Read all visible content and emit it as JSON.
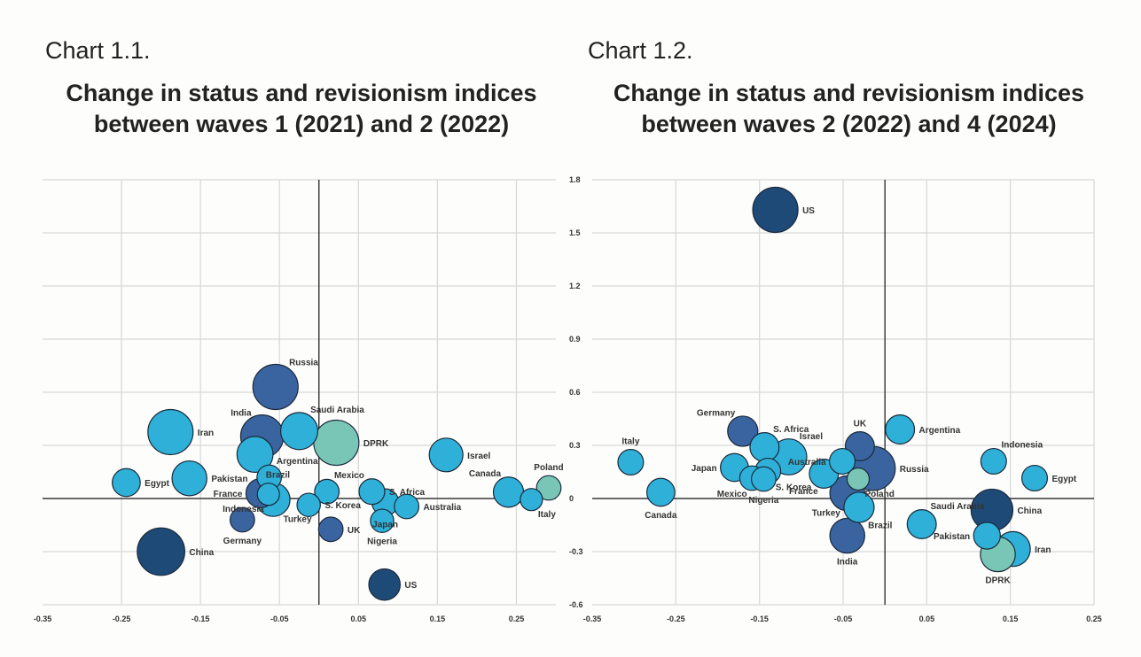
{
  "palette": {
    "light": "#2eb0d8",
    "mid": "#3a64a0",
    "dark": "#1e4a78",
    "teal": "#79c6b6"
  },
  "chart_data": [
    {
      "type": "scatter",
      "subtype": "bubble",
      "number": "Chart 1.1.",
      "title_line1": "Change in status and revisionism indices",
      "title_line2": "between waves 1 (2021) and 2 (2022)",
      "xlabel": "",
      "ylabel": "",
      "xlim": [
        -0.35,
        0.3
      ],
      "x_ticks": [
        "-0.35",
        "-0.25",
        "-0.15",
        "-0.05",
        "0.05",
        "0.15",
        "0.25"
      ],
      "x_tick_values": [
        -0.35,
        -0.25,
        -0.15,
        -0.05,
        0.05,
        0.15,
        0.25
      ],
      "y_ticks_shown": false,
      "y_note": "no y tick labels shown; y values estimated in gridline units (1 gridline = 0.1)",
      "ylim": [
        -0.2,
        0.6
      ],
      "y_gridlines": [
        -0.2,
        -0.1,
        0.1,
        0.2,
        0.3,
        0.4,
        0.5,
        0.6
      ],
      "grid": true,
      "points": [
        {
          "name": "Russia",
          "x": -0.055,
          "y": 0.21,
          "size": 3,
          "color": "mid",
          "label_pos": "top-right"
        },
        {
          "name": "Iran",
          "x": -0.188,
          "y": 0.125,
          "size": 3,
          "color": "light",
          "label_pos": "right"
        },
        {
          "name": "Saudi Arabia",
          "x": -0.025,
          "y": 0.127,
          "size": 2.3,
          "color": "light",
          "label_pos": "top-right"
        },
        {
          "name": "DPRK",
          "x": 0.022,
          "y": 0.105,
          "size": 3,
          "color": "teal",
          "label_pos": "right"
        },
        {
          "name": "Brazil",
          "x": -0.081,
          "y": 0.083,
          "size": 2.2,
          "color": "light",
          "label_pos": "bottom-right"
        },
        {
          "name": "India",
          "x": -0.072,
          "y": 0.117,
          "size": 2.8,
          "color": "mid",
          "label_pos": "top-left"
        },
        {
          "name": "Israel",
          "x": 0.161,
          "y": 0.082,
          "size": 2.0,
          "color": "light",
          "label_pos": "right"
        },
        {
          "name": "Pakistan",
          "x": -0.164,
          "y": 0.038,
          "size": 2.1,
          "color": "light",
          "label_pos": "right"
        },
        {
          "name": "Egypt",
          "x": -0.244,
          "y": 0.03,
          "size": 1.5,
          "color": "light",
          "label_pos": "right"
        },
        {
          "name": "Argentina",
          "x": -0.063,
          "y": 0.04,
          "size": 1.2,
          "color": "light",
          "label_pos": "top-right"
        },
        {
          "name": "Turkey",
          "x": -0.058,
          "y": -0.002,
          "size": 2.0,
          "color": "light",
          "label_pos": "bottom-right"
        },
        {
          "name": "Indonesia",
          "x": -0.064,
          "y": 0.008,
          "size": 1.0,
          "color": "light",
          "label_pos": "bottom-left"
        },
        {
          "name": "France",
          "x": -0.074,
          "y": 0.01,
          "size": 1.6,
          "color": "mid",
          "label_pos": "left"
        },
        {
          "name": "Mexico",
          "x": 0.01,
          "y": 0.013,
          "size": 1.2,
          "color": "light",
          "label_pos": "top-right"
        },
        {
          "name": "S. Africa",
          "x": 0.067,
          "y": 0.013,
          "size": 1.3,
          "color": "light",
          "label_pos": "right"
        },
        {
          "name": "Japan",
          "x": 0.084,
          "y": -0.007,
          "size": 1.4,
          "color": "light",
          "label_pos": "bottom"
        },
        {
          "name": "S. Korea",
          "x": -0.013,
          "y": -0.012,
          "size": 1.1,
          "color": "light",
          "label_pos": "right"
        },
        {
          "name": "Australia",
          "x": 0.111,
          "y": -0.015,
          "size": 1.2,
          "color": "light",
          "label_pos": "right"
        },
        {
          "name": "Canada",
          "x": 0.24,
          "y": 0.012,
          "size": 1.7,
          "color": "light",
          "label_pos": "top-left"
        },
        {
          "name": "Italy",
          "x": 0.269,
          "y": -0.002,
          "size": 1.0,
          "color": "light",
          "label_pos": "bottom-right"
        },
        {
          "name": "Poland",
          "x": 0.291,
          "y": 0.02,
          "size": 1.2,
          "color": "teal",
          "label_pos": "top"
        },
        {
          "name": "Germany",
          "x": -0.097,
          "y": -0.04,
          "size": 1.2,
          "color": "mid",
          "label_pos": "bottom"
        },
        {
          "name": "Nigeria",
          "x": 0.08,
          "y": -0.042,
          "size": 1.1,
          "color": "light",
          "label_pos": "bottom"
        },
        {
          "name": "UK",
          "x": 0.015,
          "y": -0.058,
          "size": 1.2,
          "color": "mid",
          "label_pos": "right"
        },
        {
          "name": "China",
          "x": -0.2,
          "y": -0.1,
          "size": 3.2,
          "color": "dark",
          "label_pos": "right"
        },
        {
          "name": "US",
          "x": 0.083,
          "y": -0.162,
          "size": 1.8,
          "color": "dark",
          "label_pos": "right"
        }
      ]
    },
    {
      "type": "scatter",
      "subtype": "bubble",
      "number": "Chart 1.2.",
      "title_line1": "Change in status and revisionism indices",
      "title_line2": "between waves 2 (2022) and 4 (2024)",
      "xlabel": "",
      "ylabel": "",
      "xlim": [
        -0.35,
        0.25
      ],
      "ylim": [
        -0.6,
        1.8
      ],
      "x_ticks": [
        "-0.35",
        "-0.25",
        "-0.15",
        "-0.05",
        "0.05",
        "0.15",
        "0.25"
      ],
      "x_tick_values": [
        -0.35,
        -0.25,
        -0.15,
        -0.05,
        0.05,
        0.15,
        0.25
      ],
      "y_ticks": [
        "1.8",
        "1.5",
        "1.2",
        "0.9",
        "0.6",
        "0.3",
        "0",
        "-0.3",
        "-0.6"
      ],
      "y_tick_values": [
        1.8,
        1.5,
        1.2,
        0.9,
        0.6,
        0.3,
        0,
        -0.3,
        -0.6
      ],
      "y_ticks_shown": true,
      "grid": true,
      "points": [
        {
          "name": "US",
          "x": -0.131,
          "y": 1.63,
          "size": 3,
          "color": "dark",
          "label_pos": "right"
        },
        {
          "name": "Germany",
          "x": -0.17,
          "y": 0.38,
          "size": 1.7,
          "color": "mid",
          "label_pos": "top-left"
        },
        {
          "name": "S. Africa",
          "x": -0.144,
          "y": 0.29,
          "size": 1.6,
          "color": "light",
          "label_pos": "top-right"
        },
        {
          "name": "Israel",
          "x": -0.115,
          "y": 0.235,
          "size": 2.2,
          "color": "light",
          "label_pos": "top-right"
        },
        {
          "name": "Italy",
          "x": -0.304,
          "y": 0.205,
          "size": 1.3,
          "color": "light",
          "label_pos": "top"
        },
        {
          "name": "Japan",
          "x": -0.18,
          "y": 0.175,
          "size": 1.5,
          "color": "light",
          "label_pos": "left"
        },
        {
          "name": "S. Korea",
          "x": -0.14,
          "y": 0.155,
          "size": 1.3,
          "color": "light",
          "label_pos": "bottom-right"
        },
        {
          "name": "Mexico",
          "x": -0.159,
          "y": 0.115,
          "size": 1.2,
          "color": "light",
          "label_pos": "bottom-left"
        },
        {
          "name": "Nigeria",
          "x": -0.145,
          "y": 0.11,
          "size": 1.2,
          "color": "light",
          "label_pos": "bottom"
        },
        {
          "name": "France",
          "x": -0.073,
          "y": 0.14,
          "size": 1.6,
          "color": "light",
          "label_pos": "bottom-left"
        },
        {
          "name": "Australia",
          "x": -0.051,
          "y": 0.21,
          "size": 1.3,
          "color": "light",
          "label_pos": "left"
        },
        {
          "name": "UK",
          "x": -0.03,
          "y": 0.295,
          "size": 1.6,
          "color": "mid",
          "label_pos": "top"
        },
        {
          "name": "Argentina",
          "x": 0.018,
          "y": 0.39,
          "size": 1.6,
          "color": "light",
          "label_pos": "right"
        },
        {
          "name": "Russia",
          "x": -0.014,
          "y": 0.17,
          "size": 2.9,
          "color": "mid",
          "label_pos": "right"
        },
        {
          "name": "Poland",
          "x": -0.032,
          "y": 0.11,
          "size": 1.0,
          "color": "teal",
          "label_pos": "bottom-right"
        },
        {
          "name": "Turkey",
          "x": -0.045,
          "y": 0.03,
          "size": 2.1,
          "color": "mid",
          "label_pos": "bottom-left"
        },
        {
          "name": "Brazil",
          "x": -0.031,
          "y": -0.05,
          "size": 1.7,
          "color": "light",
          "label_pos": "bottom-right"
        },
        {
          "name": "India",
          "x": -0.045,
          "y": -0.21,
          "size": 2.1,
          "color": "mid",
          "label_pos": "bottom"
        },
        {
          "name": "Canada",
          "x": -0.268,
          "y": 0.035,
          "size": 1.5,
          "color": "light",
          "label_pos": "bottom"
        },
        {
          "name": "Saudi Arabia",
          "x": 0.044,
          "y": -0.145,
          "size": 1.6,
          "color": "light",
          "label_pos": "top-right"
        },
        {
          "name": "Indonesia",
          "x": 0.13,
          "y": 0.21,
          "size": 1.3,
          "color": "light",
          "label_pos": "top-right"
        },
        {
          "name": "Egypt",
          "x": 0.179,
          "y": 0.115,
          "size": 1.3,
          "color": "light",
          "label_pos": "right"
        },
        {
          "name": "China",
          "x": 0.128,
          "y": -0.065,
          "size": 2.7,
          "color": "dark",
          "label_pos": "right"
        },
        {
          "name": "Pakistan",
          "x": 0.122,
          "y": -0.21,
          "size": 1.4,
          "color": "light",
          "label_pos": "left"
        },
        {
          "name": "Iran",
          "x": 0.153,
          "y": -0.285,
          "size": 2.1,
          "color": "light",
          "label_pos": "right"
        },
        {
          "name": "DPRK",
          "x": 0.135,
          "y": -0.315,
          "size": 2.1,
          "color": "teal",
          "label_pos": "bottom"
        }
      ]
    }
  ]
}
